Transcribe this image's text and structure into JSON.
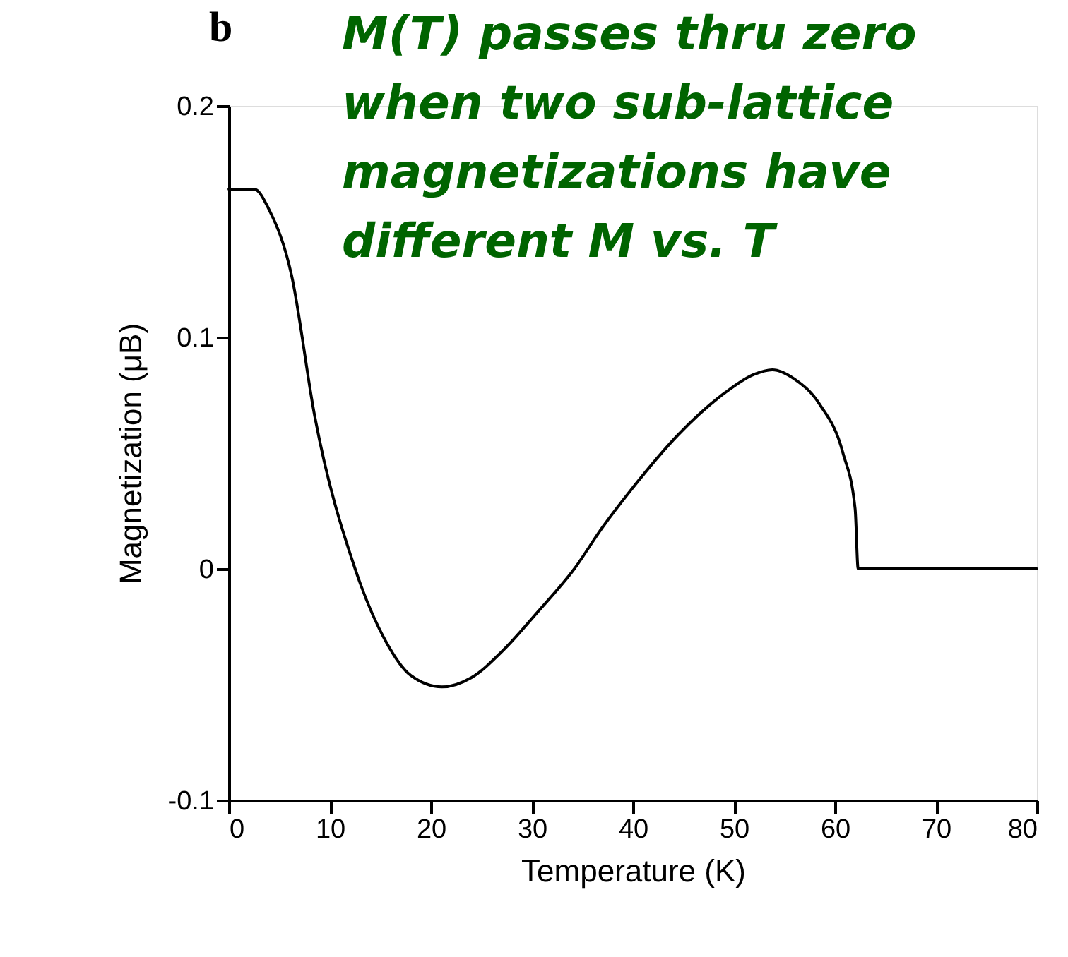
{
  "chart_data": {
    "type": "line",
    "xlabel": "Temperature (K)",
    "ylabel": "Magnetization (μB)",
    "annotations": [
      "b",
      "M(T) passes thru zero\nwhen two sub-lattice\nmagnetizations have\ndifferent M vs. T"
    ],
    "series": [
      {
        "color": "#000000",
        "x": [
          0,
          2.5,
          4,
          6.2,
          8.5,
          12.5,
          15.5,
          18,
          21.1,
          24,
          27.2,
          30.5,
          34.2,
          37,
          39.8,
          44.5,
          49.1,
          52,
          53.8,
          56,
          58.5,
          60.8,
          62,
          62.3,
          70,
          80
        ],
        "values": [
          0.164,
          0.164,
          0.155,
          0.127,
          0.066,
          0,
          -0.031,
          -0.046,
          -0.051,
          -0.047,
          -0.035,
          -0.019,
          0,
          0.018,
          0.034,
          0.058,
          0.076,
          0.084,
          0.086,
          0.082,
          0.071,
          0.05,
          0.026,
          0,
          0,
          0
        ]
      }
    ],
    "xlim": [
      0,
      80
    ],
    "xticks": [
      0,
      10,
      20,
      30,
      40,
      50,
      60,
      70,
      80
    ],
    "ylim": [
      -0.1,
      0.2
    ],
    "yticks": [
      -0.1,
      0,
      0.1,
      0.2
    ],
    "grid": false,
    "marker": "none",
    "line_style": "solid"
  }
}
